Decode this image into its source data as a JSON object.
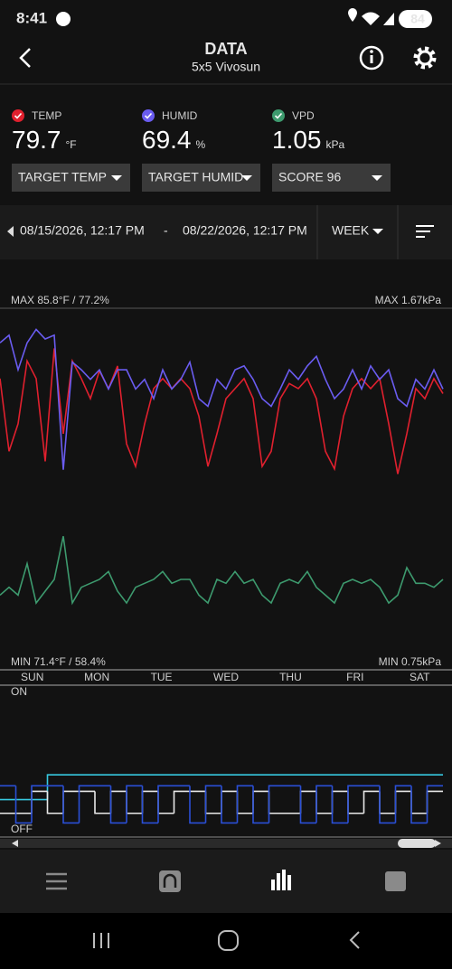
{
  "status_bar": {
    "time": "8:41",
    "battery": "84"
  },
  "header": {
    "title": "DATA",
    "subtitle": "5x5 Vivosun"
  },
  "selectors": [
    "TARGET TEMP",
    "TARGET HUMID",
    "SCORE 96"
  ],
  "range": {
    "start": "08/15/2026, 12:17 PM",
    "separator": "-",
    "end": "08/22/2026, 12:17 PM",
    "period": "WEEK"
  },
  "chart_data": [
    {
      "type": "line",
      "max_left": "MAX 85.8°F / 77.2%",
      "max_right": "MAX 1.67kPa",
      "min_left": "MIN 71.4°F / 58.4%",
      "min_right": "MIN 0.75kPa",
      "days": [
        "SUN",
        "MON",
        "TUE",
        "WED",
        "THU",
        "FRI",
        "SAT"
      ],
      "series": [
        {
          "name": "TEMP",
          "reading": "79.7",
          "unit": "°F",
          "color": "#e0202e",
          "ylim": [
            71.4,
            85.8
          ],
          "values": [
            83.0,
            80.1,
            81.2,
            83.7,
            83.0,
            79.7,
            84.2,
            80.8,
            83.7,
            83.0,
            82.2,
            83.3,
            82.6,
            83.5,
            80.4,
            79.5,
            81.2,
            82.6,
            83.0,
            82.6,
            83.0,
            82.6,
            81.5,
            79.5,
            80.8,
            82.2,
            82.6,
            83.0,
            82.2,
            79.5,
            80.1,
            82.2,
            82.8,
            82.6,
            83.0,
            82.2,
            80.1,
            79.4,
            81.5,
            82.6,
            83.0,
            82.6,
            83.0,
            81.2,
            79.2,
            80.8,
            82.6,
            82.2,
            83.0,
            82.4
          ]
        },
        {
          "name": "HUMID",
          "reading": "69.4",
          "unit": "%",
          "color": "#6a5cf0",
          "ylim": [
            58.4,
            77.2
          ],
          "values": [
            75.4,
            75.8,
            74.0,
            75.4,
            76.1,
            75.6,
            75.8,
            68.8,
            74.4,
            74.0,
            73.5,
            74.0,
            73.0,
            74.0,
            74.0,
            73.0,
            73.5,
            72.5,
            74.0,
            73.0,
            73.5,
            74.4,
            72.5,
            72.1,
            73.5,
            73.0,
            74.0,
            74.2,
            73.5,
            72.5,
            72.1,
            73.0,
            74.0,
            73.5,
            74.2,
            74.7,
            73.5,
            72.5,
            73.0,
            74.0,
            73.0,
            74.2,
            73.5,
            74.0,
            72.5,
            72.1,
            73.5,
            73.0,
            74.0,
            73.0
          ]
        },
        {
          "name": "VPD",
          "reading": "1.05",
          "unit": "kPa",
          "color": "#3d9a6e",
          "ylim": [
            0.75,
            1.67
          ],
          "values": [
            0.94,
            0.96,
            0.94,
            1.02,
            0.92,
            0.95,
            0.98,
            1.09,
            0.92,
            0.96,
            0.97,
            0.98,
            1.0,
            0.95,
            0.92,
            0.96,
            0.97,
            0.98,
            1.0,
            0.97,
            0.98,
            0.98,
            0.94,
            0.92,
            0.98,
            0.97,
            1.0,
            0.97,
            0.98,
            0.94,
            0.92,
            0.97,
            0.98,
            0.97,
            1.0,
            0.96,
            0.94,
            0.92,
            0.97,
            0.98,
            0.97,
            0.98,
            0.96,
            0.92,
            0.94,
            1.01,
            0.97,
            0.97,
            0.96,
            0.98
          ]
        }
      ]
    },
    {
      "type": "step",
      "ylim": [
        0,
        1
      ],
      "yticks": [
        {
          "value": 1,
          "label": "ON"
        },
        {
          "value": 0,
          "label": "OFF"
        }
      ],
      "series": [
        {
          "color": "#37c8e0",
          "values": [
            0.22,
            0.22,
            0.22,
            0.4,
            0.4,
            0.4,
            0.4,
            0.4,
            0.4,
            0.4,
            0.4,
            0.4,
            0.4,
            0.4,
            0.4,
            0.4,
            0.4,
            0.4,
            0.4,
            0.4,
            0.4,
            0.4,
            0.4,
            0.4,
            0.4,
            0.4,
            0.4,
            0.4
          ]
        },
        {
          "color": "#e8e8e8",
          "values": [
            0.12,
            0.12,
            0.28,
            0.12,
            0.28,
            0.28,
            0.12,
            0.28,
            0.12,
            0.28,
            0.12,
            0.28,
            0.28,
            0.12,
            0.28,
            0.12,
            0.28,
            0.12,
            0.12,
            0.28,
            0.12,
            0.28,
            0.12,
            0.28,
            0.12,
            0.28,
            0.12,
            0.28
          ]
        },
        {
          "color": "#2a4fd6",
          "values": [
            0.32,
            0.05,
            0.32,
            0.32,
            0.05,
            0.32,
            0.32,
            0.05,
            0.32,
            0.05,
            0.32,
            0.32,
            0.05,
            0.32,
            0.05,
            0.32,
            0.05,
            0.32,
            0.32,
            0.05,
            0.32,
            0.05,
            0.32,
            0.32,
            0.05,
            0.32,
            0.05,
            0.32
          ]
        }
      ]
    }
  ]
}
